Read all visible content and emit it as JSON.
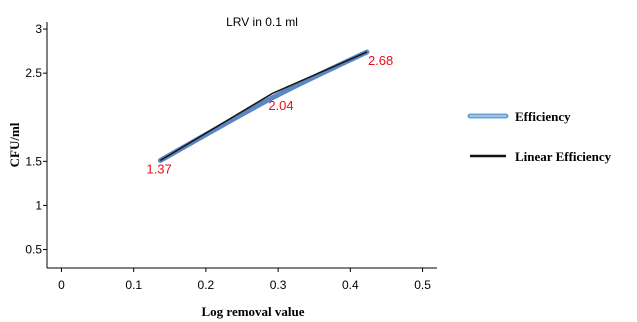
{
  "chart_data": {
    "type": "line",
    "title": "LRV in 0.1 ml",
    "xlabel": "Log removal value",
    "ylabel": "CFU/ml",
    "xlim": [
      -0.02,
      0.52
    ],
    "ylim": [
      0.29,
      3.08
    ],
    "x_ticks": [
      "0",
      "0.1",
      "0.2",
      "0.3",
      "0.4",
      "0.5"
    ],
    "x_tick_values": [
      0,
      0.1,
      0.2,
      0.3,
      0.4,
      0.5
    ],
    "y_ticks": [
      "0.5",
      "1",
      "1.5",
      "2.5",
      "3"
    ],
    "y_tick_values": [
      0.5,
      1,
      1.5,
      2.5,
      3
    ],
    "grid": false,
    "legend_position": "right",
    "series": [
      {
        "name": "Efficiency",
        "color": "#5b87c5",
        "x": [
          0.137,
          0.292,
          0.423
        ],
        "y": [
          1.51,
          2.22,
          2.74
        ]
      },
      {
        "name": "Linear Efficiency",
        "color": "#1a1a1a",
        "x": [
          0.137,
          0.292,
          0.423
        ],
        "y": [
          1.51,
          2.27,
          2.74
        ]
      }
    ],
    "annotations": [
      {
        "text": "1.37",
        "x": 0.137,
        "y": 1.51
      },
      {
        "text": "2.04",
        "x": 0.292,
        "y": 2.22
      },
      {
        "text": "2.68",
        "x": 0.423,
        "y": 2.74
      }
    ]
  }
}
